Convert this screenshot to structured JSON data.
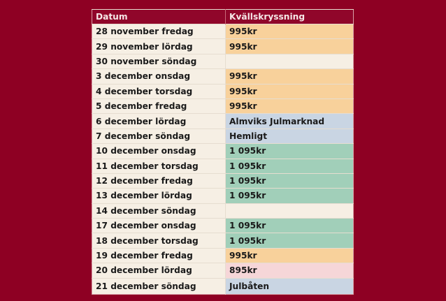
{
  "headers": [
    "Datum",
    "Kvällskryssning"
  ],
  "colors": {
    "background": "#8e0023",
    "cream": "#f6efe4",
    "orange": "#f8d19b",
    "blue": "#c9d5e3",
    "green": "#a1cfb9",
    "pink": "#f6d6d8"
  },
  "rows": [
    {
      "date": "28 november fredag",
      "price": "995kr",
      "color": "orange"
    },
    {
      "date": "29 november lördag",
      "price": "995kr",
      "color": "orange"
    },
    {
      "date": "30 november söndag",
      "price": "",
      "color": "cream"
    },
    {
      "date": "3 december onsdag",
      "price": "995kr",
      "color": "orange"
    },
    {
      "date": "4 december torsdag",
      "price": "995kr",
      "color": "orange"
    },
    {
      "date": "5 december fredag",
      "price": "995kr",
      "color": "orange"
    },
    {
      "date": "6 december lördag",
      "price": "Almviks Julmarknad",
      "color": "blue"
    },
    {
      "date": "7 december söndag",
      "price": "Hemligt",
      "color": "blue"
    },
    {
      "date": "10 december onsdag",
      "price": "1 095kr",
      "color": "green"
    },
    {
      "date": "11 december torsdag",
      "price": "1 095kr",
      "color": "green"
    },
    {
      "date": "12 december fredag",
      "price": "1 095kr",
      "color": "green"
    },
    {
      "date": "13 december lördag",
      "price": "1 095kr",
      "color": "green"
    },
    {
      "date": "14 december söndag",
      "price": "",
      "color": "cream"
    },
    {
      "date": "17 december onsdag",
      "price": "1 095kr",
      "color": "green"
    },
    {
      "date": "18 december torsdag",
      "price": "1 095kr",
      "color": "green"
    },
    {
      "date": "19 december fredag",
      "price": "995kr",
      "color": "orange"
    },
    {
      "date": "20 december lördag",
      "price": "895kr",
      "color": "pink"
    },
    {
      "date": "21 december söndag",
      "price": "Julbåten",
      "color": "blue"
    }
  ]
}
